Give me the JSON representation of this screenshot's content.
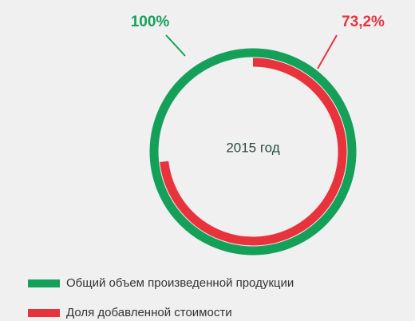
{
  "chart_data": {
    "type": "radial",
    "center_label": "2015 год",
    "rlim": [
      0,
      100
    ],
    "series": [
      {
        "name": "Общий объем произведенной продукции",
        "color": "#15a05a",
        "values": [
          100
        ],
        "value_labels": [
          "100%"
        ]
      },
      {
        "name": "Доля добавленной стоимости",
        "color": "#e8333d",
        "values": [
          73.2
        ],
        "value_labels": [
          "73,2%"
        ]
      }
    ]
  }
}
